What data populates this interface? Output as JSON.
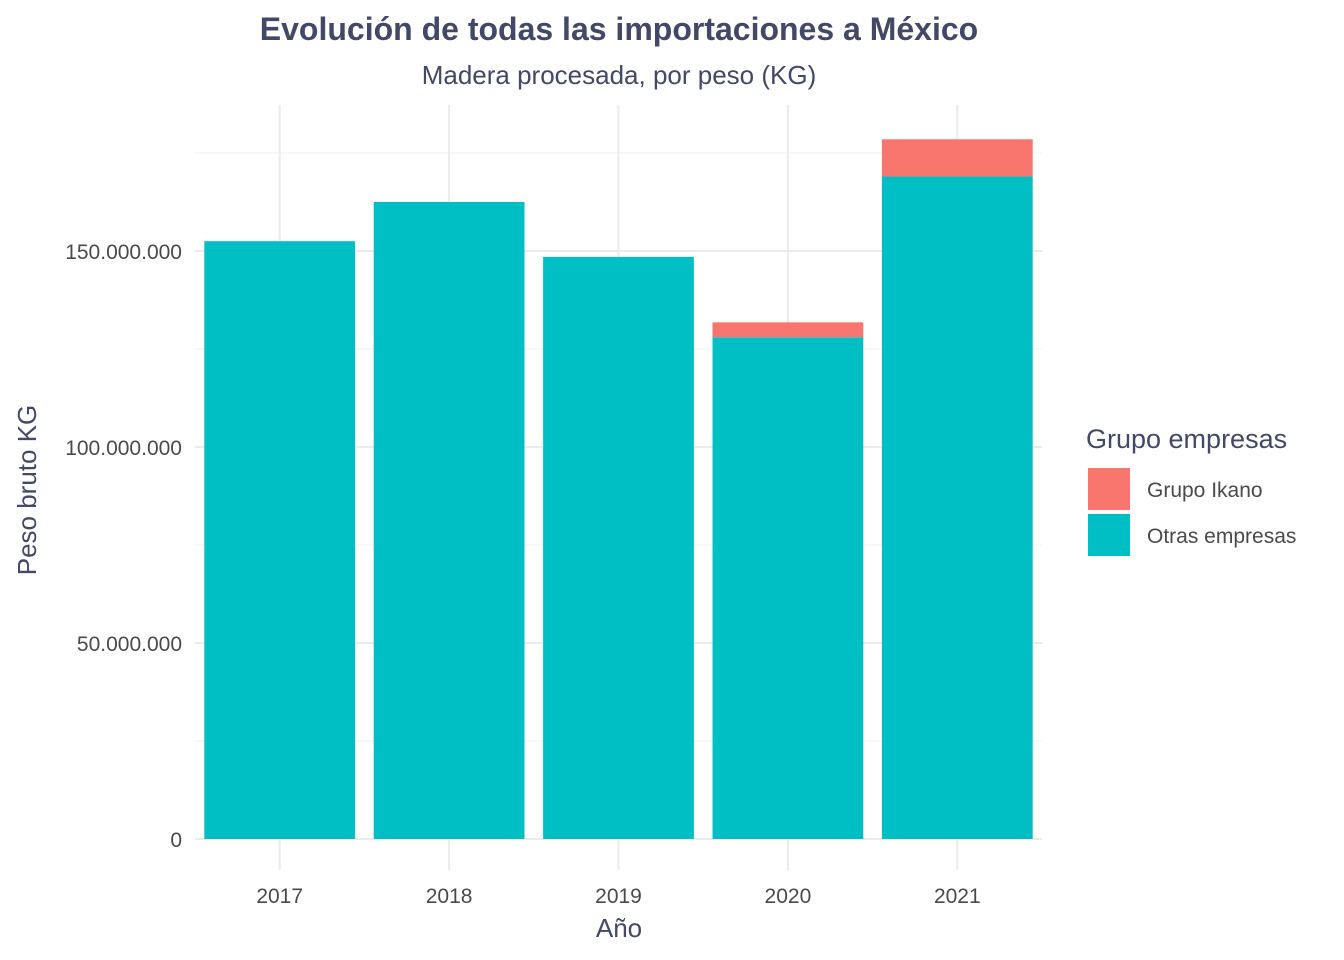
{
  "chart_data": {
    "type": "bar",
    "stacked": true,
    "title": "Evolución de todas las importaciones a México",
    "subtitle": "Madera procesada, por peso (KG)",
    "xlabel": "Año",
    "ylabel": "Peso bruto KG",
    "categories": [
      "2017",
      "2018",
      "2019",
      "2020",
      "2021"
    ],
    "series": [
      {
        "name": "Otras empresas",
        "color": "#00BFC4",
        "values": [
          152500000,
          162500000,
          148500000,
          128000000,
          169000000
        ]
      },
      {
        "name": "Grupo Ikano",
        "color": "#F8766D",
        "values": [
          0,
          0,
          0,
          3800000,
          9500000
        ]
      }
    ],
    "ylim": [
      0,
      179000000
    ],
    "yticks": [
      0,
      50000000,
      100000000,
      150000000
    ],
    "ytick_labels": [
      "0",
      "50.000.000",
      "100.000.000",
      "150.000.000"
    ],
    "grid": true,
    "legend": {
      "title": "Grupo empresas",
      "placement": "right",
      "items": [
        {
          "label": "Grupo Ikano",
          "color": "#F8766D"
        },
        {
          "label": "Otras empresas",
          "color": "#00BFC4"
        }
      ]
    }
  }
}
